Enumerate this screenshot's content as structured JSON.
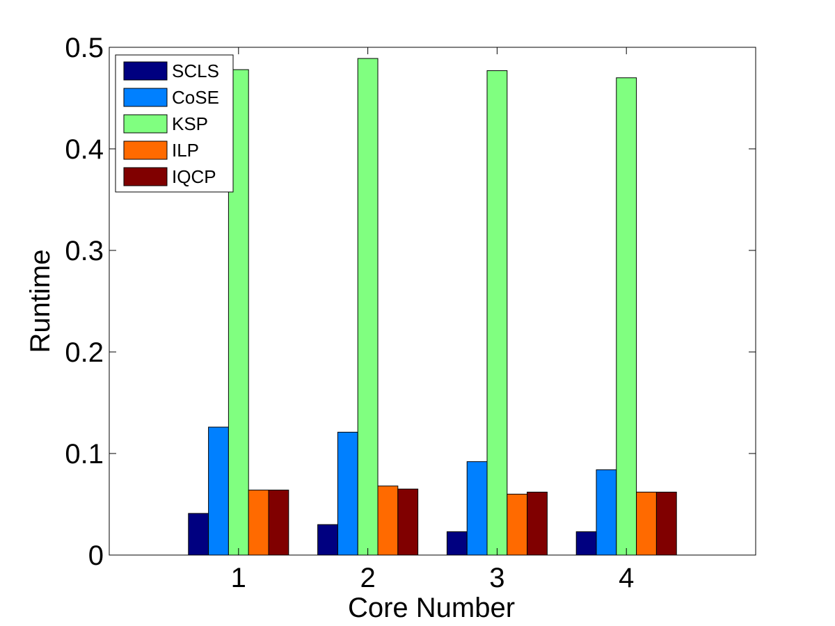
{
  "chart_data": {
    "type": "bar",
    "title": "",
    "xlabel": "Core Number",
    "ylabel": "Runtime",
    "categories": [
      "1",
      "2",
      "3",
      "4"
    ],
    "x_axis_range": [
      0,
      5
    ],
    "ylim": [
      0,
      0.5
    ],
    "yticks": [
      "0",
      "0.1",
      "0.2",
      "0.3",
      "0.4",
      "0.5"
    ],
    "ytick_values": [
      0,
      0.1,
      0.2,
      0.3,
      0.4,
      0.5
    ],
    "grid": false,
    "legend_position": "top-left",
    "series": [
      {
        "name": "SCLS",
        "color": "#000080",
        "values": [
          0.041,
          0.03,
          0.023,
          0.023
        ]
      },
      {
        "name": "CoSE",
        "color": "#0080ff",
        "values": [
          0.126,
          0.121,
          0.092,
          0.084
        ]
      },
      {
        "name": "KSP",
        "color": "#80ff80",
        "values": [
          0.478,
          0.489,
          0.477,
          0.47
        ]
      },
      {
        "name": "ILP",
        "color": "#ff6a00",
        "values": [
          0.064,
          0.068,
          0.06,
          0.062
        ]
      },
      {
        "name": "IQCP",
        "color": "#800000",
        "values": [
          0.064,
          0.065,
          0.062,
          0.062
        ]
      }
    ]
  }
}
